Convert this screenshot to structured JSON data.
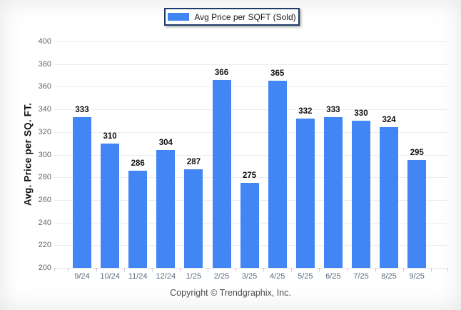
{
  "legend": {
    "label": "Avg Price per SQFT (Sold)"
  },
  "footer": {
    "copyright": "Copyright © Trendgraphix, Inc."
  },
  "colors": {
    "bar": "#4285f4",
    "legend_border": "#1e3a66",
    "gridline": "#ececec",
    "value_label": "#111111",
    "tick_label": "#5a6a7e"
  },
  "chart_data": {
    "type": "bar",
    "categories": [
      "9/24",
      "10/24",
      "11/24",
      "12/24",
      "1/25",
      "2/25",
      "3/25",
      "4/25",
      "5/25",
      "6/25",
      "7/25",
      "8/25",
      "9/25"
    ],
    "values": [
      333,
      310,
      286,
      304,
      287,
      366,
      275,
      365,
      332,
      333,
      330,
      324,
      295
    ],
    "series_name": "Avg Price per SQFT (Sold)",
    "title": "",
    "xlabel": "",
    "ylabel": "Avg. Price per SQ. FT.",
    "ylim": [
      200,
      400
    ],
    "ytick_step": 20,
    "grid": true,
    "legend_position": "top-center",
    "value_labels_shown": true
  }
}
